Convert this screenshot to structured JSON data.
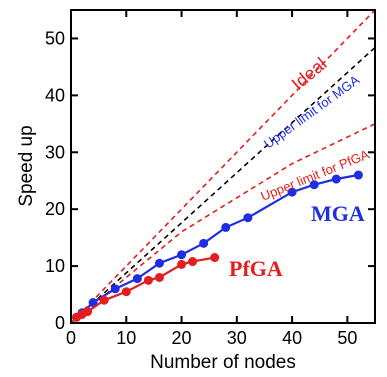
{
  "chart_data": {
    "type": "line",
    "xlabel": "Number of nodes",
    "ylabel": "Speed up",
    "xlim": [
      0,
      55
    ],
    "ylim": [
      0,
      55
    ],
    "x_ticks": [
      0,
      10,
      20,
      30,
      40,
      50
    ],
    "y_ticks": [
      0,
      10,
      20,
      30,
      40,
      50
    ],
    "grid": false,
    "series": [
      {
        "name": "MGA",
        "color": "#1f2ee0",
        "marker": "circle",
        "x": [
          1,
          2,
          4,
          8,
          12,
          16,
          20,
          24,
          28,
          32,
          40,
          44,
          48,
          52
        ],
        "y": [
          1,
          1.8,
          3.6,
          6,
          7.8,
          10.5,
          12,
          14,
          16.8,
          18.5,
          23,
          24.3,
          25.3,
          26
        ]
      },
      {
        "name": "PfGA",
        "color": "#e51d1d",
        "marker": "circle",
        "x": [
          1,
          2,
          3,
          6,
          10,
          14,
          16,
          20,
          22,
          26
        ],
        "y": [
          1,
          1.5,
          2,
          4,
          5.5,
          7.5,
          8,
          10.3,
          10.8,
          11.5
        ]
      }
    ],
    "reference_lines": [
      {
        "label": "Ideal",
        "color": "#e51d1d",
        "dash": true,
        "slope": 1.0
      },
      {
        "label": "Upper limit for MGA",
        "color": "#1f2ee0",
        "line_color": "#000000",
        "dash": true,
        "slope": 0.88
      },
      {
        "label": "Upper limit for PfGA",
        "color": "#e51d1d",
        "dash": true,
        "points": [
          [
            0,
            0
          ],
          [
            20,
            16
          ],
          [
            40,
            28
          ],
          [
            55,
            35
          ]
        ]
      }
    ]
  }
}
